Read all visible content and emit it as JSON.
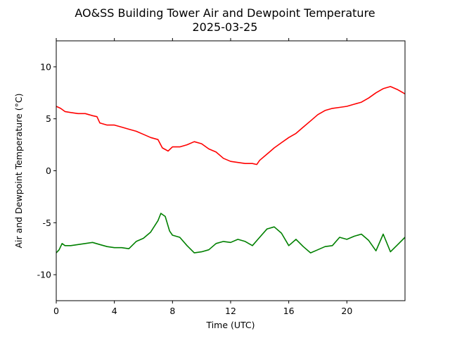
{
  "chart_data": {
    "type": "line",
    "title": "AO&SS Building Tower Air and Dewpoint Temperature",
    "subtitle": "2025-03-25",
    "xlabel": "Time (UTC)",
    "ylabel": "Air and Dewpoint Temperature (°C)",
    "xlim": [
      0,
      24
    ],
    "ylim": [
      -12.5,
      12.5
    ],
    "xticks": [
      0,
      4,
      8,
      12,
      16,
      20
    ],
    "yticks": [
      -10,
      -5,
      0,
      5,
      10
    ],
    "grid": false,
    "series": [
      {
        "color": "#ff0000",
        "x": [
          0,
          0.3,
          0.6,
          1,
          1.5,
          2,
          2.5,
          2.8,
          3,
          3.5,
          4,
          4.5,
          5,
          5.5,
          6,
          6.5,
          7,
          7.3,
          7.7,
          8,
          8.5,
          9,
          9.5,
          10,
          10.5,
          11,
          11.5,
          12,
          12.5,
          13,
          13.5,
          13.8,
          14,
          14.5,
          15,
          15.5,
          16,
          16.5,
          17,
          17.5,
          18,
          18.5,
          19,
          19.5,
          20,
          20.5,
          21,
          21.5,
          22,
          22.5,
          23,
          23.5,
          24
        ],
        "y": [
          6.2,
          6.0,
          5.7,
          5.6,
          5.5,
          5.5,
          5.3,
          5.2,
          4.6,
          4.4,
          4.4,
          4.2,
          4.0,
          3.8,
          3.5,
          3.2,
          3.0,
          2.2,
          1.9,
          2.3,
          2.3,
          2.5,
          2.8,
          2.6,
          2.1,
          1.8,
          1.2,
          0.9,
          0.8,
          0.7,
          0.7,
          0.6,
          1.0,
          1.6,
          2.2,
          2.7,
          3.2,
          3.6,
          4.2,
          4.8,
          5.4,
          5.8,
          6.0,
          6.1,
          6.2,
          6.4,
          6.6,
          7.0,
          7.5,
          7.9,
          8.1,
          7.8,
          7.4
        ]
      },
      {
        "color": "#008000",
        "x": [
          0,
          0.2,
          0.4,
          0.6,
          1,
          1.5,
          2,
          2.5,
          3,
          3.5,
          4,
          4.5,
          5,
          5.5,
          6,
          6.5,
          7,
          7.2,
          7.5,
          7.8,
          8,
          8.5,
          9,
          9.5,
          10,
          10.5,
          11,
          11.5,
          12,
          12.5,
          13,
          13.5,
          14,
          14.5,
          15,
          15.5,
          16,
          16.5,
          17,
          17.5,
          18,
          18.5,
          19,
          19.5,
          20,
          20.5,
          21,
          21.5,
          22,
          22.5,
          23,
          23.5,
          24
        ],
        "y": [
          -7.9,
          -7.6,
          -7.0,
          -7.2,
          -7.2,
          -7.1,
          -7.0,
          -6.9,
          -7.1,
          -7.3,
          -7.4,
          -7.4,
          -7.5,
          -6.8,
          -6.5,
          -5.9,
          -4.8,
          -4.1,
          -4.4,
          -5.8,
          -6.2,
          -6.4,
          -7.2,
          -7.9,
          -7.8,
          -7.6,
          -7.0,
          -6.8,
          -6.9,
          -6.6,
          -6.8,
          -7.2,
          -6.4,
          -5.6,
          -5.4,
          -6.0,
          -7.2,
          -6.6,
          -7.3,
          -7.9,
          -7.6,
          -7.3,
          -7.2,
          -6.4,
          -6.6,
          -6.3,
          -6.1,
          -6.7,
          -7.7,
          -6.1,
          -7.8,
          -7.1,
          -6.4
        ]
      }
    ]
  }
}
